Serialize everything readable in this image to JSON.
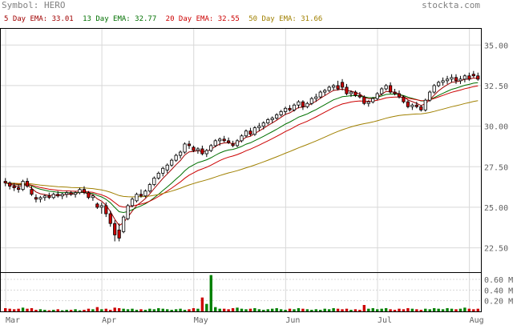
{
  "header": {
    "symbol": "Symbol: HERO",
    "site": "stockta.com"
  },
  "legend": [
    {
      "label": "5 Day EMA: 33.01",
      "color": "#a00000"
    },
    {
      "label": "13 Day EMA: 32.77",
      "color": "#007000"
    },
    {
      "label": "20 Day EMA: 32.55",
      "color": "#cc0000"
    },
    {
      "label": "50 Day EMA: 31.66",
      "color": "#a08000"
    }
  ],
  "chart_data": {
    "type": "candlestick",
    "price_axis": {
      "ticks": [
        "35.00",
        "32.50",
        "30.00",
        "27.50",
        "25.00",
        "22.50"
      ],
      "ylim": [
        21.0,
        36.0
      ],
      "grid": true
    },
    "volume_axis": {
      "ticks": [
        "0.60 M",
        "0.40 M",
        "0.20 M"
      ],
      "ylim": [
        0,
        0.72
      ]
    },
    "x_labels": [
      {
        "label": "Mar",
        "index": 0
      },
      {
        "label": "Apr",
        "index": 22
      },
      {
        "label": "May",
        "index": 43
      },
      {
        "label": "Jun",
        "index": 64
      },
      {
        "label": "Jul",
        "index": 85
      },
      {
        "label": "Aug",
        "index": 106
      }
    ],
    "ohlc": [
      [
        26.6,
        26.8,
        26.3,
        26.5
      ],
      [
        26.5,
        26.6,
        26.1,
        26.3
      ],
      [
        26.3,
        26.5,
        26.0,
        26.2
      ],
      [
        26.2,
        26.4,
        25.9,
        26.1
      ],
      [
        26.1,
        26.7,
        26.0,
        26.6
      ],
      [
        26.6,
        26.8,
        26.2,
        26.3
      ],
      [
        26.1,
        26.3,
        25.7,
        25.8
      ],
      [
        25.6,
        25.8,
        25.3,
        25.5
      ],
      [
        25.5,
        25.7,
        25.3,
        25.6
      ],
      [
        25.6,
        25.8,
        25.4,
        25.7
      ],
      [
        25.7,
        25.9,
        25.5,
        25.6
      ],
      [
        25.6,
        25.9,
        25.5,
        25.8
      ],
      [
        25.8,
        26.0,
        25.6,
        25.7
      ],
      [
        25.7,
        25.9,
        25.5,
        25.8
      ],
      [
        25.8,
        26.0,
        25.6,
        25.9
      ],
      [
        25.9,
        26.0,
        25.7,
        25.8
      ],
      [
        25.8,
        26.0,
        25.6,
        25.9
      ],
      [
        25.9,
        26.2,
        25.8,
        26.1
      ],
      [
        26.1,
        26.3,
        25.8,
        25.9
      ],
      [
        25.9,
        26.0,
        25.5,
        25.6
      ],
      [
        25.6,
        25.8,
        25.4,
        25.7
      ],
      [
        25.2,
        25.3,
        24.9,
        25.0
      ],
      [
        25.0,
        25.3,
        24.6,
        25.1
      ],
      [
        25.1,
        25.3,
        24.4,
        24.6
      ],
      [
        24.6,
        24.8,
        23.8,
        24.0
      ],
      [
        24.0,
        24.2,
        22.9,
        23.3
      ],
      [
        23.6,
        24.0,
        22.9,
        23.1
      ],
      [
        23.5,
        24.5,
        23.4,
        24.4
      ],
      [
        24.3,
        25.2,
        24.2,
        25.1
      ],
      [
        25.1,
        25.6,
        25.0,
        25.5
      ],
      [
        25.4,
        25.9,
        25.3,
        25.8
      ],
      [
        25.8,
        26.1,
        25.6,
        25.7
      ],
      [
        25.7,
        26.1,
        25.6,
        26.0
      ],
      [
        26.0,
        26.5,
        25.9,
        26.4
      ],
      [
        26.4,
        26.9,
        26.3,
        26.8
      ],
      [
        26.8,
        27.2,
        26.7,
        27.1
      ],
      [
        27.1,
        27.5,
        26.9,
        27.4
      ],
      [
        27.3,
        27.7,
        27.1,
        27.6
      ],
      [
        27.6,
        28.0,
        27.5,
        27.9
      ],
      [
        27.9,
        28.3,
        27.8,
        28.2
      ],
      [
        28.2,
        28.5,
        28.0,
        28.4
      ],
      [
        28.4,
        29.0,
        28.3,
        28.9
      ],
      [
        28.9,
        29.1,
        28.6,
        28.8
      ],
      [
        28.7,
        28.8,
        28.4,
        28.5
      ],
      [
        28.5,
        28.7,
        28.3,
        28.6
      ],
      [
        28.6,
        28.8,
        28.2,
        28.3
      ],
      [
        28.3,
        28.6,
        28.1,
        28.5
      ],
      [
        28.5,
        28.9,
        28.4,
        28.8
      ],
      [
        28.8,
        29.2,
        28.7,
        29.1
      ],
      [
        29.1,
        29.3,
        28.8,
        29.2
      ],
      [
        29.2,
        29.4,
        29.0,
        29.1
      ],
      [
        29.1,
        29.3,
        28.9,
        29.0
      ],
      [
        28.9,
        29.1,
        28.7,
        28.8
      ],
      [
        28.8,
        29.2,
        28.7,
        29.1
      ],
      [
        29.1,
        29.5,
        29.0,
        29.4
      ],
      [
        29.4,
        29.8,
        29.3,
        29.7
      ],
      [
        29.7,
        29.9,
        29.4,
        29.5
      ],
      [
        29.5,
        30.0,
        29.4,
        29.9
      ],
      [
        29.9,
        30.2,
        29.7,
        30.0
      ],
      [
        30.0,
        30.3,
        29.8,
        30.2
      ],
      [
        30.2,
        30.5,
        30.1,
        30.4
      ],
      [
        30.4,
        30.6,
        30.2,
        30.5
      ],
      [
        30.5,
        30.8,
        30.4,
        30.7
      ],
      [
        30.7,
        31.0,
        30.6,
        30.9
      ],
      [
        30.9,
        31.2,
        30.7,
        31.1
      ],
      [
        31.1,
        31.3,
        30.9,
        31.0
      ],
      [
        31.0,
        31.4,
        30.9,
        31.3
      ],
      [
        31.3,
        31.6,
        31.1,
        31.5
      ],
      [
        31.5,
        31.6,
        31.0,
        31.2
      ],
      [
        31.2,
        31.5,
        31.1,
        31.4
      ],
      [
        31.4,
        31.8,
        31.3,
        31.7
      ],
      [
        31.7,
        32.0,
        31.5,
        31.8
      ],
      [
        31.8,
        32.2,
        31.7,
        32.1
      ],
      [
        32.1,
        32.3,
        31.9,
        32.2
      ],
      [
        32.2,
        32.5,
        32.1,
        32.4
      ],
      [
        32.4,
        32.6,
        32.2,
        32.5
      ],
      [
        32.5,
        32.8,
        32.2,
        32.3
      ],
      [
        32.7,
        32.9,
        32.2,
        32.4
      ],
      [
        32.4,
        32.6,
        31.9,
        32.0
      ],
      [
        32.0,
        32.2,
        31.8,
        32.1
      ],
      [
        32.1,
        32.2,
        31.8,
        31.9
      ],
      [
        31.9,
        32.1,
        31.7,
        31.8
      ],
      [
        31.8,
        31.9,
        31.3,
        31.4
      ],
      [
        31.4,
        31.6,
        31.2,
        31.5
      ],
      [
        31.5,
        31.8,
        31.4,
        31.7
      ],
      [
        31.7,
        32.1,
        31.6,
        32.0
      ],
      [
        32.0,
        32.4,
        31.9,
        32.3
      ],
      [
        32.3,
        32.6,
        32.2,
        32.5
      ],
      [
        32.5,
        32.7,
        32.0,
        32.1
      ],
      [
        32.1,
        32.3,
        31.9,
        32.0
      ],
      [
        32.0,
        32.2,
        31.7,
        31.8
      ],
      [
        31.8,
        31.9,
        31.4,
        31.5
      ],
      [
        31.5,
        31.6,
        31.1,
        31.2
      ],
      [
        31.2,
        31.4,
        31.0,
        31.3
      ],
      [
        31.3,
        31.5,
        31.1,
        31.2
      ],
      [
        31.2,
        31.3,
        30.9,
        31.0
      ],
      [
        31.0,
        31.7,
        30.9,
        31.6
      ],
      [
        31.6,
        32.2,
        31.5,
        32.1
      ],
      [
        32.1,
        32.6,
        32.0,
        32.5
      ],
      [
        32.5,
        32.8,
        32.4,
        32.7
      ],
      [
        32.7,
        33.0,
        32.5,
        32.8
      ],
      [
        32.8,
        33.1,
        32.6,
        32.9
      ],
      [
        32.9,
        33.2,
        32.7,
        33.0
      ],
      [
        33.0,
        33.2,
        32.6,
        32.8
      ],
      [
        32.8,
        33.1,
        32.6,
        32.9
      ],
      [
        32.9,
        33.2,
        32.7,
        33.1
      ],
      [
        33.1,
        33.3,
        32.8,
        32.9
      ],
      [
        33.2,
        33.4,
        33.0,
        33.1
      ],
      [
        33.1,
        33.3,
        32.8,
        32.9
      ]
    ],
    "volume_m": [
      0.06,
      0.05,
      0.04,
      0.05,
      0.07,
      0.05,
      0.06,
      0.03,
      0.04,
      0.03,
      0.02,
      0.03,
      0.04,
      0.02,
      0.03,
      0.03,
      0.04,
      0.02,
      0.03,
      0.05,
      0.04,
      0.08,
      0.04,
      0.05,
      0.03,
      0.07,
      0.06,
      0.05,
      0.04,
      0.05,
      0.03,
      0.04,
      0.03,
      0.05,
      0.04,
      0.06,
      0.05,
      0.04,
      0.03,
      0.04,
      0.05,
      0.03,
      0.04,
      0.06,
      0.05,
      0.26,
      0.14,
      0.68,
      0.08,
      0.05,
      0.05,
      0.04,
      0.06,
      0.07,
      0.05,
      0.04,
      0.05,
      0.06,
      0.04,
      0.03,
      0.04,
      0.05,
      0.06,
      0.04,
      0.03,
      0.05,
      0.04,
      0.06,
      0.05,
      0.04,
      0.03,
      0.04,
      0.03,
      0.05,
      0.04,
      0.06,
      0.05,
      0.04,
      0.05,
      0.03,
      0.04,
      0.03,
      0.12,
      0.05,
      0.06,
      0.04,
      0.05,
      0.06,
      0.04,
      0.03,
      0.05,
      0.04,
      0.06,
      0.05,
      0.04,
      0.03,
      0.05,
      0.04,
      0.06,
      0.05,
      0.04,
      0.06,
      0.05,
      0.04,
      0.05,
      0.07,
      0.05,
      0.04,
      0.05
    ]
  }
}
